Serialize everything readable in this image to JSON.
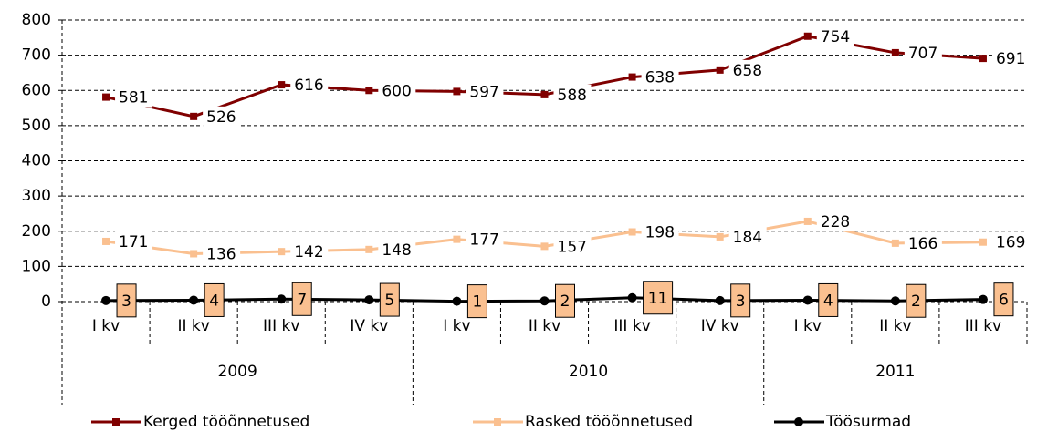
{
  "chart_data": {
    "type": "line",
    "groups": [
      {
        "name": "2009",
        "categories": [
          "I kv",
          "II kv",
          "III kv",
          "IV kv"
        ]
      },
      {
        "name": "2010",
        "categories": [
          "I kv",
          "II kv",
          "III kv",
          "IV kv"
        ]
      },
      {
        "name": "2011",
        "categories": [
          "I kv",
          "II kv",
          "III kv"
        ]
      }
    ],
    "series": [
      {
        "name": "Kerged tööõnnetused",
        "color": "#800000",
        "marker": "square",
        "label_style": "plain",
        "values": [
          581,
          526,
          616,
          600,
          597,
          588,
          638,
          658,
          754,
          707,
          691
        ]
      },
      {
        "name": "Rasked tööõnnetused",
        "color": "#fac090",
        "marker": "square",
        "label_style": "plain",
        "values": [
          171,
          136,
          142,
          148,
          177,
          157,
          198,
          184,
          228,
          166,
          169
        ]
      },
      {
        "name": "Töösurmad",
        "color": "#000000",
        "marker": "circle",
        "label_style": "box",
        "values": [
          3,
          4,
          7,
          5,
          1,
          2,
          11,
          3,
          4,
          2,
          6
        ]
      }
    ],
    "ylim": [
      0,
      800
    ],
    "yticks": [
      0,
      100,
      200,
      300,
      400,
      500,
      600,
      700,
      800
    ],
    "grid": true,
    "legend": "bottom"
  }
}
